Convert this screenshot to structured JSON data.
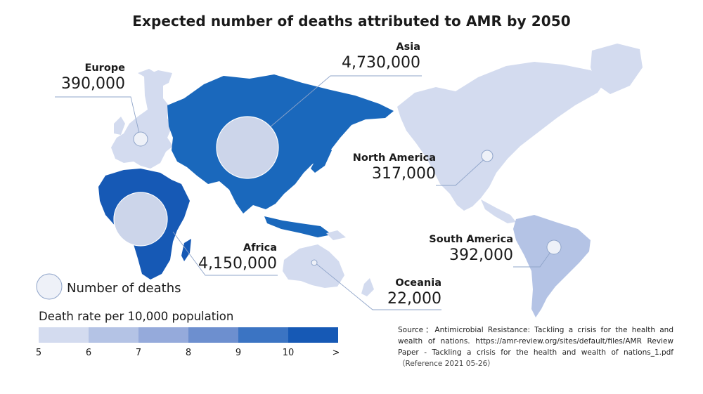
{
  "title": "Expected number of deaths attributed to AMR by 2050",
  "regions": [
    {
      "name": "Europe",
      "deaths": "390,000"
    },
    {
      "name": "Asia",
      "deaths": "4,730,000"
    },
    {
      "name": "North America",
      "deaths": "317,000"
    },
    {
      "name": "Africa",
      "deaths": "4,150,000"
    },
    {
      "name": "South America",
      "deaths": "392,000"
    },
    {
      "name": "Oceania",
      "deaths": "22,000"
    }
  ],
  "legend": {
    "circle_label": "Number of deaths",
    "rate_title": "Death rate per 10,000 population",
    "ticks": [
      "5",
      "6",
      "7",
      "8",
      "9",
      "10",
      ">"
    ],
    "colors": [
      "#d3dbef",
      "#b4c3e5",
      "#95aadb",
      "#6d8fcf",
      "#3b74c3",
      "#1659b5"
    ]
  },
  "region_colors": {
    "europe": "#d3dbef",
    "asia": "#1a68bc",
    "north_america": "#d3dbef",
    "africa": "#1659b5",
    "south_america": "#b4c3e5",
    "oceania": "#d3dbef"
  },
  "source": {
    "text": "Source：Antimicrobial Resistance: Tackling a crisis for the health and wealth of nations. https://amr-review.org/sites/default/files/AMR Review Paper - Tackling a crisis for the health and wealth of nations_1.pdf",
    "reference": "（Reference 2021 05-26）"
  }
}
